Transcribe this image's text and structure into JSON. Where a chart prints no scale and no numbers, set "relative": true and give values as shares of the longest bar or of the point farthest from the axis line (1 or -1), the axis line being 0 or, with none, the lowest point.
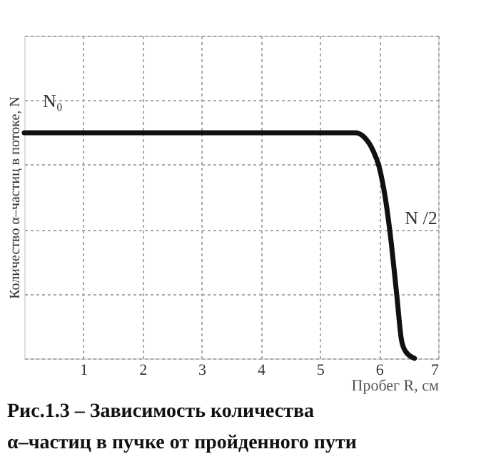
{
  "chart_data": {
    "type": "line",
    "relative": true,
    "xlabel": "Пробег R, см",
    "ylabel": "Количество α–частиц в потоке, N",
    "series": [
      {
        "color": "#111111",
        "x": [
          0,
          5.6,
          5.75,
          5.9,
          6.0,
          6.1,
          6.18,
          6.3,
          6.38,
          6.45,
          6.6
        ],
        "values": [
          1,
          1,
          0.98,
          0.92,
          0.85,
          0.72,
          0.57,
          0.28,
          0.08,
          0.03,
          0
        ]
      }
    ],
    "xlim": [
      0,
      7
    ],
    "xticks": [
      1,
      2,
      3,
      4,
      5,
      6,
      7
    ],
    "grid": true,
    "tick_labels": "x",
    "marker": "none",
    "line_style": "solid",
    "annotations": [
      "N₀",
      "N /2",
      "Рис.1.3 – Зависимость количества α–частиц в пучке  от пройденного пути"
    ]
  }
}
